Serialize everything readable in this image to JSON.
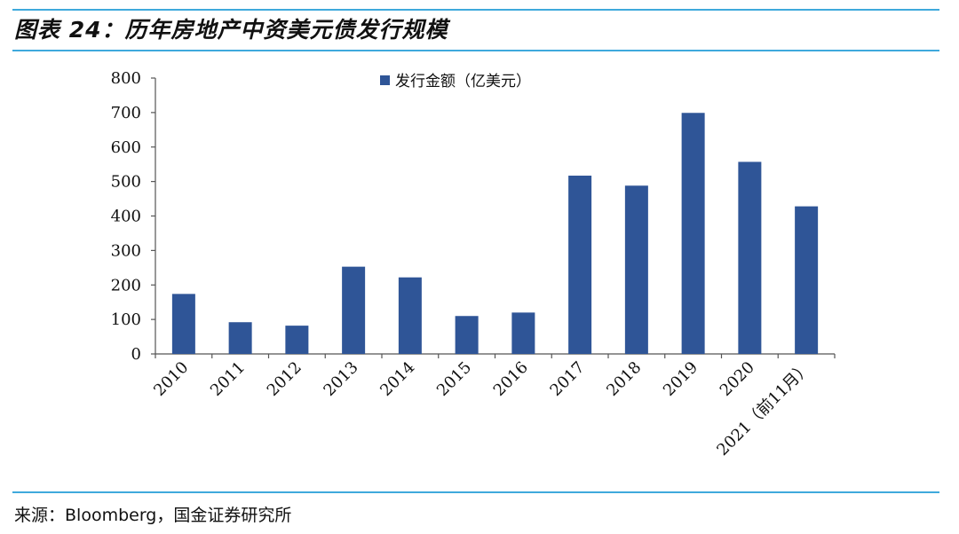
{
  "header": {
    "title": "图表 24：历年房地产中资美元债发行规模"
  },
  "footer": {
    "source": "来源：Bloomberg，国金证券研究所"
  },
  "colors": {
    "accent_rule": "#3fa9dc",
    "bar": "#2f5597"
  },
  "chart_data": {
    "type": "bar",
    "title": "",
    "xlabel": "",
    "ylabel": "",
    "categories": [
      "2010",
      "2011",
      "2012",
      "2013",
      "2014",
      "2015",
      "2016",
      "2017",
      "2018",
      "2019",
      "2020",
      "2021（前11月）"
    ],
    "series": [
      {
        "name": "发行金额（亿美元）",
        "values": [
          174,
          92,
          82,
          253,
          222,
          110,
          120,
          517,
          488,
          699,
          557,
          428
        ]
      }
    ],
    "ylim": [
      0,
      800
    ],
    "yticks": [
      0,
      100,
      200,
      300,
      400,
      500,
      600,
      700,
      800
    ],
    "grid": false,
    "legend_position": "top-center"
  }
}
